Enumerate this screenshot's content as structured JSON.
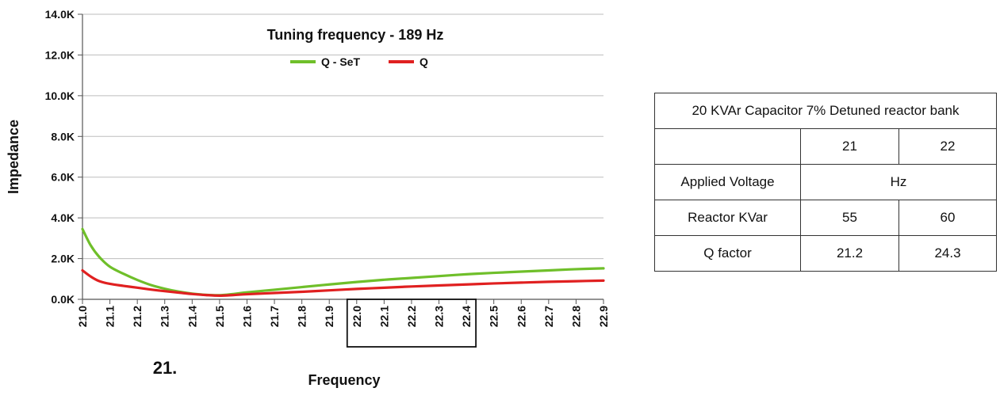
{
  "chart_data": {
    "type": "line",
    "title": "Tuning frequency - 189 Hz",
    "xlabel": "Frequency",
    "ylabel": "Impedance",
    "x": [
      21.0,
      21.1,
      21.2,
      21.3,
      21.4,
      21.5,
      21.6,
      21.7,
      21.8,
      21.9,
      22.0,
      22.1,
      22.2,
      22.3,
      22.4,
      22.5,
      22.6,
      22.7,
      22.8,
      22.9
    ],
    "x_tick_labels": [
      "21.0",
      "21.1",
      "21.2",
      "21.3",
      "21.4",
      "21.5",
      "21.6",
      "21.7",
      "21.8",
      "21.9",
      "22.0",
      "22.1",
      "22.2",
      "22.3",
      "22.4",
      "22.5",
      "22.6",
      "22.7",
      "22.8",
      "22.9"
    ],
    "y_ticks": [
      0,
      2000,
      4000,
      6000,
      8000,
      10000,
      12000,
      14000
    ],
    "y_tick_labels": [
      "0.0K",
      "2.0K",
      "4.0K",
      "6.0K",
      "8.0K",
      "10.0K",
      "12.0K",
      "14.0K"
    ],
    "xlim": [
      21.0,
      22.9
    ],
    "ylim": [
      0,
      14000
    ],
    "grid": "horizontal",
    "legend_position": "top-center",
    "highlight_range": [
      22.0,
      22.4
    ],
    "annotation": "21.",
    "series": [
      {
        "name": "Q - SeT",
        "color": "#6fbf2a",
        "x": [
          21.0,
          21.03,
          21.06,
          21.1,
          21.15,
          21.2,
          21.25,
          21.3,
          21.35,
          21.4,
          21.45,
          21.5,
          21.55,
          21.6,
          21.7,
          21.8,
          21.9,
          22.0,
          22.1,
          22.2,
          22.3,
          22.4,
          22.5,
          22.6,
          22.7,
          22.8,
          22.9
        ],
        "y": [
          3450,
          2650,
          2100,
          1600,
          1250,
          950,
          700,
          520,
          380,
          280,
          220,
          200,
          260,
          340,
          470,
          600,
          730,
          850,
          960,
          1050,
          1140,
          1230,
          1300,
          1360,
          1420,
          1480,
          1520
        ]
      },
      {
        "name": "Q",
        "color": "#e02020",
        "x": [
          21.0,
          21.03,
          21.06,
          21.1,
          21.15,
          21.2,
          21.25,
          21.3,
          21.35,
          21.4,
          21.45,
          21.5,
          21.55,
          21.6,
          21.7,
          21.8,
          21.9,
          22.0,
          22.1,
          22.2,
          22.3,
          22.4,
          22.5,
          22.6,
          22.7,
          22.8,
          22.9
        ],
        "y": [
          1420,
          1120,
          900,
          760,
          660,
          570,
          480,
          400,
          330,
          260,
          210,
          180,
          210,
          250,
          310,
          370,
          440,
          510,
          570,
          630,
          680,
          730,
          780,
          820,
          860,
          890,
          920
        ]
      }
    ]
  },
  "table": {
    "title": "20 KVAr Capacitor 7% Detuned reactor bank",
    "header": [
      "",
      "21",
      "22"
    ],
    "rows": [
      {
        "label": "Applied Voltage",
        "merged": "Hz"
      },
      {
        "label": "Reactor KVar",
        "values": [
          "55",
          "60"
        ]
      },
      {
        "label": "Q factor",
        "values": [
          "21.2",
          "24.3"
        ]
      }
    ]
  }
}
